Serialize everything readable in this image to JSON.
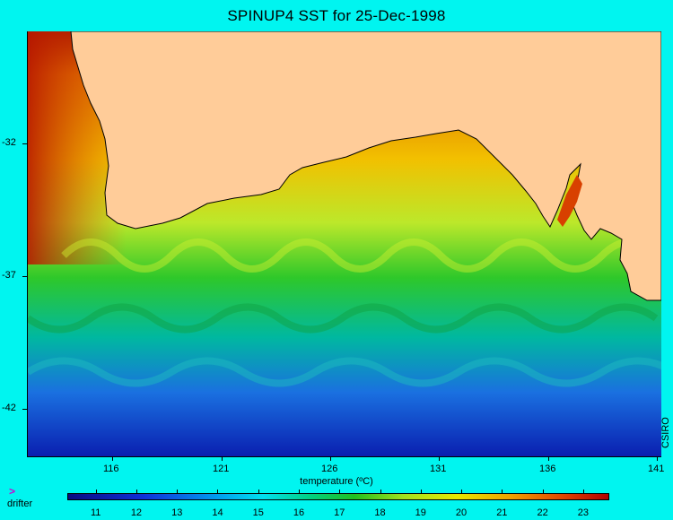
{
  "title": "SPINUP4 SST for 25-Dec-1998",
  "y_ticks": [
    "-32",
    "-37",
    "-42"
  ],
  "x_ticks": [
    "116",
    "121",
    "126",
    "131",
    "136",
    "141"
  ],
  "credit": "CSIRO",
  "legend": {
    "title": "temperature (ºC)",
    "drifter_symbol": ">",
    "drifter_label": "drifter",
    "ticks": [
      "11",
      "12",
      "13",
      "14",
      "15",
      "16",
      "17",
      "18",
      "19",
      "20",
      "21",
      "22",
      "23"
    ],
    "range": [
      10.3,
      23.6
    ]
  },
  "colors": {
    "background": "#00f5f0",
    "land": "#ffcc99",
    "drifter": "#d000d0"
  }
}
